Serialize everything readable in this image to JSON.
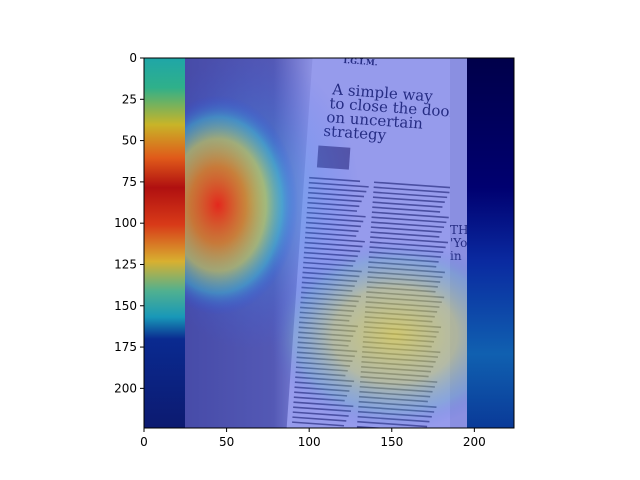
{
  "chart_data": {
    "type": "heatmap",
    "title": "",
    "xlabel": "",
    "ylabel": "",
    "x_range": [
      0,
      224
    ],
    "y_range": [
      224,
      0
    ],
    "x_ticks": [
      0,
      50,
      100,
      150,
      200
    ],
    "y_ticks": [
      0,
      25,
      50,
      75,
      100,
      125,
      150,
      175,
      200
    ],
    "colormap": "jet",
    "grid": false,
    "legend": "none",
    "background_image": "newspaper-photo",
    "newspaper_text": {
      "masthead": "T.G.I.M.",
      "headline": [
        "A simple way",
        "to close the door",
        "on uncertain",
        "strategy"
      ],
      "side_fragments": [
        "TH",
        "'Yo",
        "in"
      ]
    },
    "activation_hotspots": [
      {
        "x": 12,
        "y": 80,
        "intensity": 1.0
      },
      {
        "x": 48,
        "y": 88,
        "intensity": 0.95
      },
      {
        "x": 135,
        "y": 170,
        "intensity": 0.55
      },
      {
        "x": 160,
        "y": 180,
        "intensity": 0.5
      }
    ],
    "colors": {
      "deep_blue": "#000080",
      "blue": "#0000ff",
      "cyan": "#00ffff",
      "yellow": "#ffff00",
      "red": "#ff0000",
      "dark_red": "#800000"
    }
  }
}
